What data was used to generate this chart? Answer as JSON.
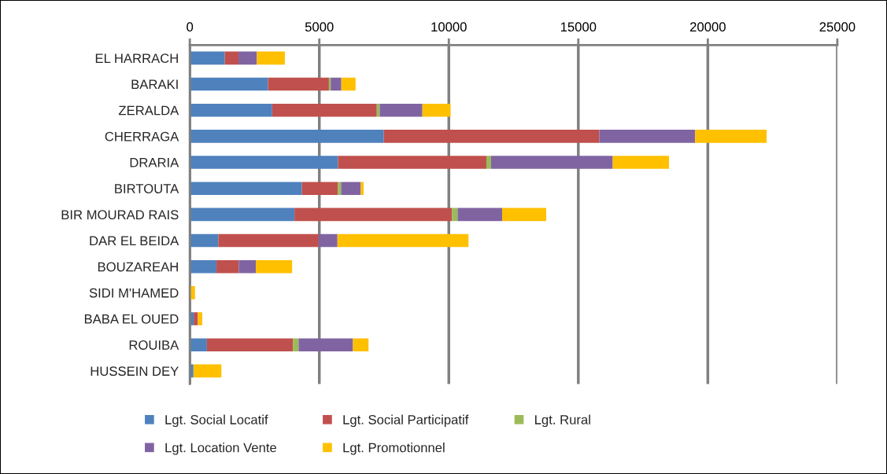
{
  "chart_data": {
    "type": "bar",
    "orientation": "horizontal",
    "stacked": true,
    "categories": [
      "EL HARRACH",
      "BARAKI",
      "ZERALDA",
      "CHERRAGA",
      "DRARIA",
      "BIRTOUTA",
      "BIR MOURAD RAIS",
      "DAR EL BEIDA",
      "BOUZAREAH",
      "SIDI M'HAMED",
      "BABA EL OUED",
      "ROUIBA",
      "HUSSEIN DEY"
    ],
    "series": [
      {
        "name": "Lgt. Social Locatif",
        "color": "#4f81bd",
        "values": [
          1350,
          3020,
          3180,
          7490,
          5720,
          4330,
          4040,
          1100,
          1030,
          null,
          150,
          660,
          140
        ]
      },
      {
        "name": "Lgt. Social Participatif",
        "color": "#c0504d",
        "values": [
          530,
          2350,
          4040,
          8320,
          5730,
          1390,
          6080,
          3870,
          860,
          0,
          160,
          3320,
          0
        ]
      },
      {
        "name": "Lgt. Rural",
        "color": "#9bbb59",
        "values": [
          0,
          70,
          110,
          0,
          180,
          120,
          220,
          0,
          0,
          0,
          0,
          220,
          0
        ]
      },
      {
        "name": "Lgt. Location Vente",
        "color": "#8064a2",
        "values": [
          710,
          410,
          1650,
          3700,
          4700,
          760,
          1720,
          730,
          660,
          0,
          0,
          2100,
          0
        ]
      },
      {
        "name": "Lgt. Promotionnel",
        "color": "#ffc000",
        "values": [
          1080,
          550,
          1090,
          2760,
          2170,
          110,
          1700,
          5060,
          1400,
          200,
          170,
          600,
          1080
        ]
      }
    ],
    "xlim": [
      0,
      25000
    ],
    "xticks": [
      0,
      5000,
      10000,
      15000,
      20000,
      25000
    ],
    "grid": "x",
    "legend": "bottom"
  }
}
